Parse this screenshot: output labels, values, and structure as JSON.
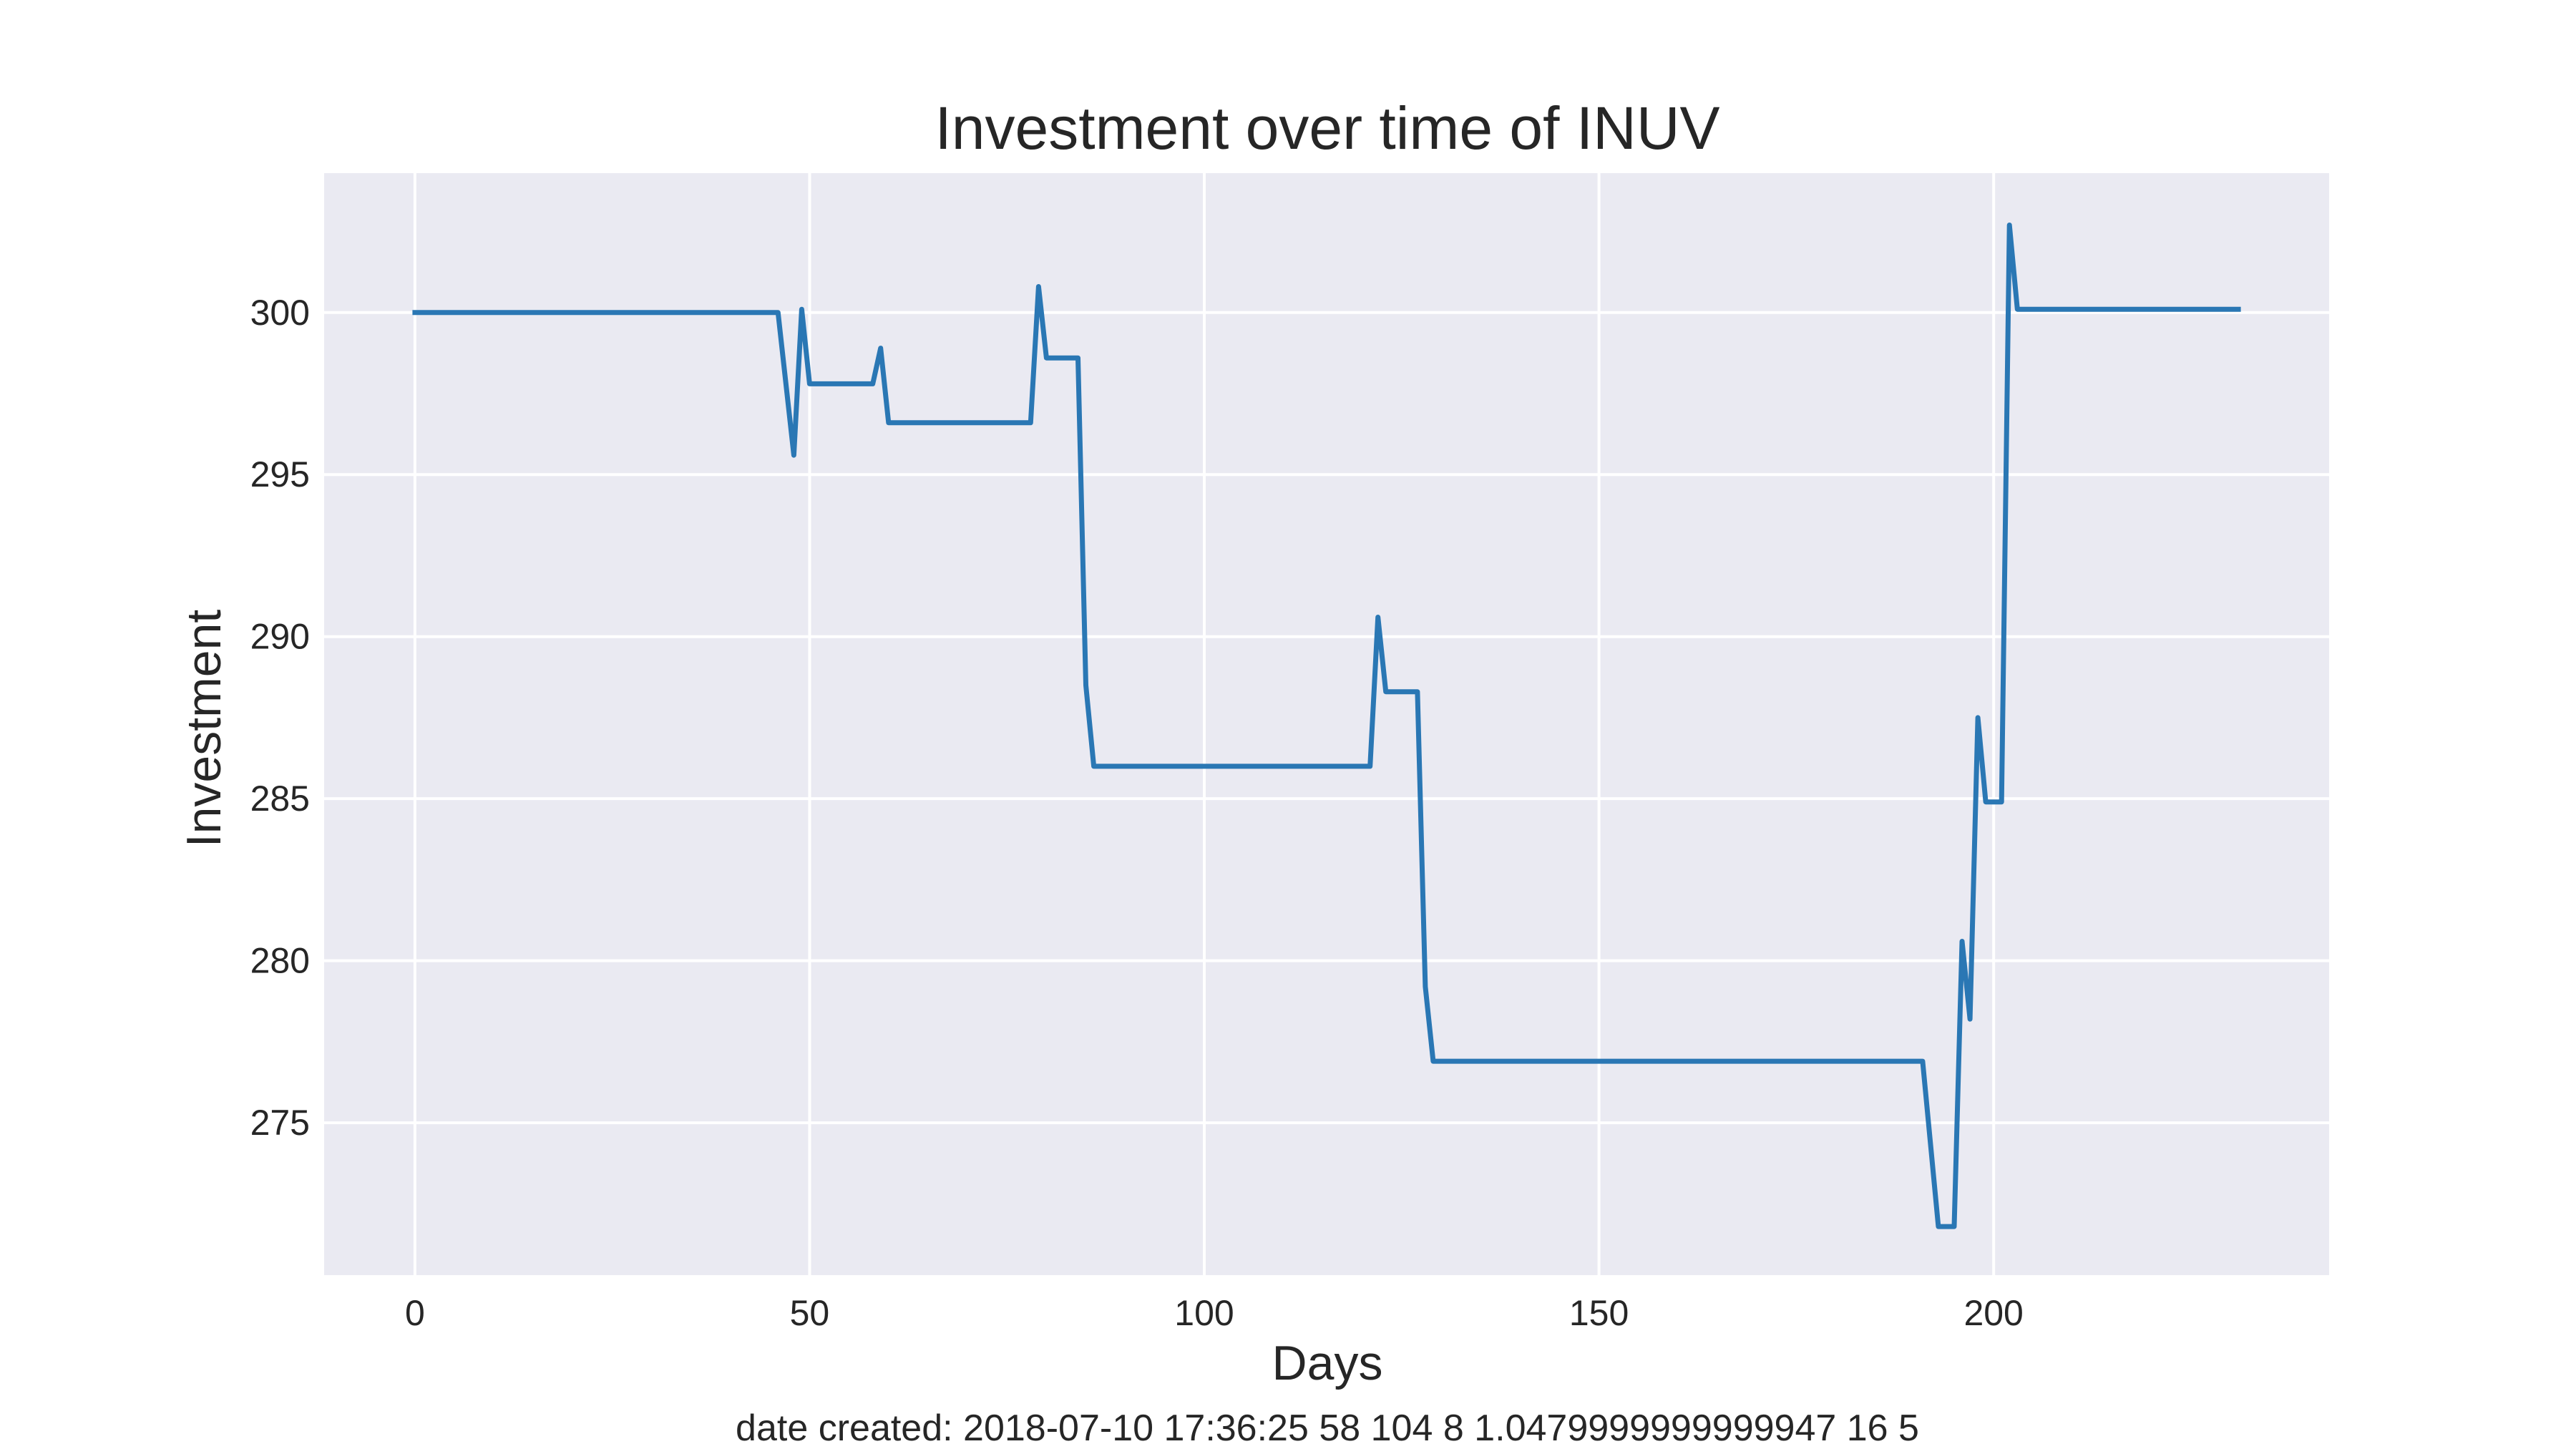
{
  "chart_data": {
    "type": "line",
    "title": "Investment over time of INUV",
    "xlabel": "Days",
    "ylabel": "Investment",
    "footer": "date created: 2018-07-10 17:36:25 58 104 8 1.0479999999999947 16 5",
    "xlim": [
      -11.5,
      242.5
    ],
    "ylim": [
      270.3,
      304.3
    ],
    "xticks": [
      0,
      50,
      100,
      150,
      200
    ],
    "yticks": [
      275,
      280,
      285,
      290,
      295,
      300
    ],
    "grid": true,
    "legend": "none",
    "colors": {
      "axes_background": "#eaeaf2",
      "grid": "#ffffff",
      "line": "#2a77b4",
      "text": "#262626"
    },
    "series": [
      {
        "x": [
          0,
          46,
          48,
          49,
          50,
          58,
          59,
          60,
          78,
          79,
          80,
          84,
          85,
          86,
          121,
          122,
          123,
          127,
          128,
          129,
          191,
          193,
          195,
          196,
          197,
          198,
          199,
          201,
          202,
          203,
          231
        ],
        "values": [
          300.0,
          300.0,
          295.6,
          300.1,
          297.8,
          297.8,
          298.9,
          296.6,
          296.6,
          300.8,
          298.6,
          298.6,
          288.5,
          286.0,
          286.0,
          290.6,
          288.3,
          288.3,
          279.2,
          276.9,
          276.9,
          271.8,
          271.8,
          280.6,
          278.2,
          287.5,
          284.9,
          284.9,
          302.7,
          300.1,
          300.1
        ]
      }
    ]
  }
}
